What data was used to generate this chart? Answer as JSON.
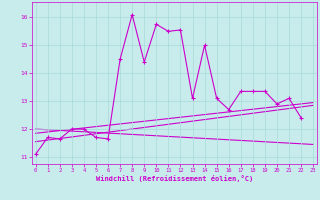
{
  "title": "",
  "xlabel": "Windchill (Refroidissement éolien,°C)",
  "bg_color": "#c8ecec",
  "grid_color": "#a8d8d8",
  "line_color": "#cc00cc",
  "x_ticks": [
    0,
    1,
    2,
    3,
    4,
    5,
    6,
    7,
    8,
    9,
    10,
    11,
    12,
    13,
    14,
    15,
    16,
    17,
    18,
    19,
    20,
    21,
    22,
    23
  ],
  "y_ticks": [
    11,
    12,
    13,
    14,
    15,
    16
  ],
  "xlim": [
    -0.3,
    23.3
  ],
  "ylim": [
    10.75,
    16.55
  ],
  "spiky_line": {
    "x": [
      0,
      1,
      2,
      3,
      4,
      5,
      6,
      7,
      8,
      9,
      10,
      11,
      12,
      13,
      14,
      15,
      16,
      17,
      18,
      19,
      20,
      21,
      22
    ],
    "y": [
      11.1,
      11.7,
      11.65,
      12.0,
      12.0,
      11.7,
      11.65,
      14.5,
      16.1,
      14.4,
      15.75,
      15.5,
      15.55,
      13.1,
      15.0,
      13.1,
      12.7,
      13.35,
      13.35,
      13.35,
      12.9,
      13.1,
      12.4
    ]
  },
  "trend1_x": [
    0,
    23
  ],
  "trend1_y": [
    11.55,
    12.85
  ],
  "trend2_x": [
    0,
    23
  ],
  "trend2_y": [
    11.85,
    12.95
  ],
  "trend3_x": [
    0,
    23
  ],
  "trend3_y": [
    12.0,
    11.45
  ]
}
